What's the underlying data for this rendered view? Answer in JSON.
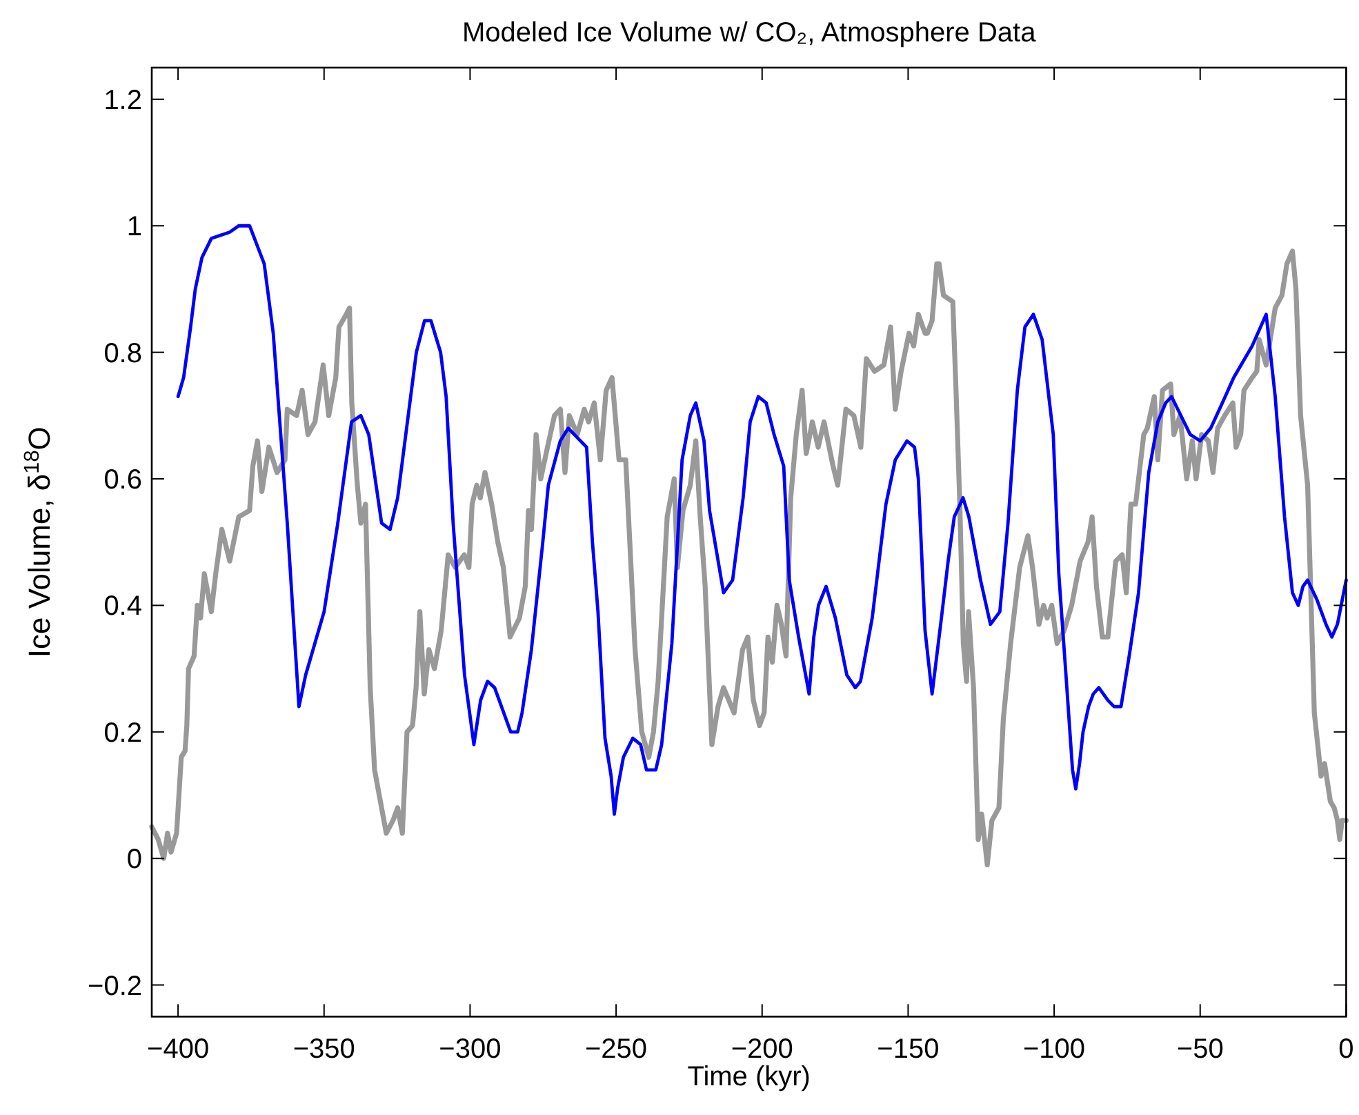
{
  "chart_data": {
    "type": "line",
    "title": "Modeled Ice Volume w/ CO₂, Atmosphere Data",
    "xlabel": "Time (kyr)",
    "ylabel": "Ice Volume, δ$^{18}$O",
    "xlim": [
      -409,
      0
    ],
    "xticks": [
      -400,
      -350,
      -300,
      -250,
      -200,
      -150,
      -100,
      -50,
      0
    ],
    "ylim": [
      -0.25,
      1.25
    ],
    "yticks": [
      -0.2,
      0,
      0.2,
      0.4,
      0.6,
      0.8,
      1,
      1.2
    ],
    "grid": false,
    "marker": "none",
    "line_style": "solid",
    "series": [
      {
        "color": "#999999",
        "x": [
          -409.0,
          -406.8,
          -404.9,
          -403.6,
          -402.4,
          -400.5,
          -398.9,
          -397.6,
          -397.0,
          -396.4,
          -394.5,
          -393.4,
          -392.3,
          -391.0,
          -388.6,
          -387.1,
          -385.0,
          -382.3,
          -379.2,
          -375.5,
          -374.4,
          -372.8,
          -371.3,
          -368.9,
          -366.1,
          -363.4,
          -362.6,
          -359.4,
          -357.5,
          -355.5,
          -353.1,
          -350.3,
          -348.4,
          -346.0,
          -344.9,
          -342.4,
          -341.3,
          -340.5,
          -338.6,
          -337.4,
          -335.8,
          -334.2,
          -332.7,
          -330.3,
          -328.7,
          -326.4,
          -324.8,
          -323.2,
          -321.6,
          -319.7,
          -318.5,
          -317.2,
          -315.7,
          -314.1,
          -312.2,
          -309.9,
          -307.5,
          -305.1,
          -302.0,
          -300.4,
          -299.3,
          -297.7,
          -296.5,
          -294.9,
          -292.6,
          -290.5,
          -288.6,
          -286.3,
          -283.1,
          -281.1,
          -280.0,
          -279.0,
          -277.4,
          -275.8,
          -273.5,
          -271.1,
          -269.1,
          -267.5,
          -266.0,
          -263.3,
          -260.9,
          -259.4,
          -257.5,
          -255.4,
          -253.4,
          -251.4,
          -249.0,
          -246.7,
          -243.5,
          -241.2,
          -238.8,
          -237.2,
          -235.6,
          -232.5,
          -230.1,
          -229.0,
          -227.1,
          -224.6,
          -222.7,
          -221.2,
          -219.5,
          -217.2,
          -215.1,
          -213.2,
          -209.6,
          -206.7,
          -204.9,
          -203.0,
          -200.9,
          -199.3,
          -198.0,
          -196.5,
          -194.9,
          -193.4,
          -191.8,
          -190.2,
          -188.3,
          -186.3,
          -184.9,
          -182.8,
          -180.8,
          -178.8,
          -175.7,
          -174.1,
          -171.3,
          -168.6,
          -166.2,
          -164.3,
          -161.5,
          -158.3,
          -156.0,
          -154.4,
          -152.4,
          -149.7,
          -148.1,
          -146.5,
          -144.2,
          -143.4,
          -141.8,
          -140.2,
          -139.4,
          -137.9,
          -134.7,
          -133.6,
          -132.3,
          -131.1,
          -130.0,
          -129.3,
          -127.6,
          -126.0,
          -124.8,
          -122.9,
          -121.3,
          -118.9,
          -117.4,
          -114.9,
          -111.8,
          -109.0,
          -107.4,
          -105.2,
          -103.6,
          -102.4,
          -100.8,
          -99.0,
          -96.6,
          -94.0,
          -91.1,
          -88.4,
          -87.0,
          -85.5,
          -83.5,
          -81.6,
          -78.9,
          -76.7,
          -75.3,
          -73.7,
          -72.1,
          -69.3,
          -68.1,
          -65.7,
          -64.5,
          -62.9,
          -60.1,
          -59.0,
          -56.9,
          -54.6,
          -52.7,
          -51.4,
          -49.5,
          -47.2,
          -45.6,
          -44.0,
          -41.6,
          -38.8,
          -37.7,
          -36.1,
          -35.0,
          -32.2,
          -30.6,
          -29.8,
          -27.4,
          -24.3,
          -22.0,
          -20.3,
          -18.4,
          -17.2,
          -15.6,
          -13.2,
          -10.9,
          -8.6,
          -7.4,
          -5.4,
          -4.1,
          -3.0,
          -2.2,
          -1.4,
          0.0
        ],
        "values": [
          0.05,
          0.03,
          0.0,
          0.04,
          0.01,
          0.04,
          0.16,
          0.17,
          0.21,
          0.3,
          0.32,
          0.4,
          0.38,
          0.45,
          0.39,
          0.45,
          0.52,
          0.47,
          0.54,
          0.55,
          0.62,
          0.66,
          0.58,
          0.65,
          0.61,
          0.63,
          0.71,
          0.7,
          0.74,
          0.67,
          0.69,
          0.78,
          0.7,
          0.76,
          0.84,
          0.86,
          0.87,
          0.72,
          0.59,
          0.53,
          0.56,
          0.27,
          0.14,
          0.08,
          0.04,
          0.06,
          0.08,
          0.04,
          0.2,
          0.21,
          0.27,
          0.39,
          0.26,
          0.33,
          0.3,
          0.36,
          0.48,
          0.46,
          0.48,
          0.46,
          0.56,
          0.59,
          0.57,
          0.61,
          0.56,
          0.5,
          0.46,
          0.35,
          0.38,
          0.43,
          0.55,
          0.52,
          0.67,
          0.6,
          0.65,
          0.7,
          0.71,
          0.61,
          0.7,
          0.67,
          0.71,
          0.69,
          0.72,
          0.63,
          0.74,
          0.76,
          0.63,
          0.63,
          0.33,
          0.2,
          0.16,
          0.2,
          0.28,
          0.54,
          0.6,
          0.46,
          0.55,
          0.59,
          0.66,
          0.54,
          0.43,
          0.18,
          0.24,
          0.27,
          0.23,
          0.33,
          0.35,
          0.25,
          0.21,
          0.23,
          0.35,
          0.31,
          0.4,
          0.37,
          0.32,
          0.57,
          0.67,
          0.74,
          0.64,
          0.69,
          0.65,
          0.69,
          0.62,
          0.59,
          0.71,
          0.7,
          0.65,
          0.79,
          0.77,
          0.78,
          0.84,
          0.71,
          0.77,
          0.83,
          0.81,
          0.86,
          0.83,
          0.83,
          0.85,
          0.94,
          0.94,
          0.89,
          0.88,
          0.74,
          0.56,
          0.34,
          0.28,
          0.39,
          0.27,
          0.03,
          0.07,
          -0.01,
          0.06,
          0.08,
          0.22,
          0.34,
          0.46,
          0.51,
          0.46,
          0.37,
          0.4,
          0.38,
          0.4,
          0.34,
          0.36,
          0.4,
          0.47,
          0.5,
          0.54,
          0.43,
          0.35,
          0.35,
          0.47,
          0.48,
          0.42,
          0.56,
          0.56,
          0.67,
          0.68,
          0.73,
          0.63,
          0.74,
          0.75,
          0.67,
          0.7,
          0.6,
          0.66,
          0.6,
          0.67,
          0.66,
          0.61,
          0.68,
          0.7,
          0.72,
          0.65,
          0.67,
          0.74,
          0.76,
          0.77,
          0.82,
          0.78,
          0.87,
          0.89,
          0.94,
          0.96,
          0.9,
          0.7,
          0.59,
          0.23,
          0.13,
          0.15,
          0.09,
          0.08,
          0.06,
          0.03,
          0.06,
          0.06
        ]
      },
      {
        "color": "#0000ff",
        "x": [
          -400.0,
          -398.1,
          -395.7,
          -394.1,
          -391.8,
          -388.6,
          -382.3,
          -379.2,
          -375.5,
          -370.5,
          -367.4,
          -362.6,
          -358.6,
          -356.3,
          -350.0,
          -345.3,
          -340.6,
          -337.4,
          -334.7,
          -330.3,
          -327.4,
          -324.8,
          -318.4,
          -315.6,
          -313.4,
          -310.1,
          -308.2,
          -305.8,
          -301.9,
          -298.7,
          -296.4,
          -294.0,
          -291.6,
          -286.1,
          -283.7,
          -282.2,
          -279.0,
          -275.1,
          -273.2,
          -269.1,
          -266.4,
          -260.1,
          -258.1,
          -256.2,
          -253.8,
          -251.7,
          -250.6,
          -249.5,
          -247.5,
          -244.3,
          -241.6,
          -239.6,
          -236.4,
          -234.4,
          -230.9,
          -227.4,
          -224.6,
          -222.7,
          -219.9,
          -218.0,
          -213.2,
          -210.1,
          -206.5,
          -204.1,
          -201.3,
          -198.6,
          -195.9,
          -192.6,
          -190.7,
          -187.5,
          -183.9,
          -182.3,
          -180.7,
          -178.1,
          -174.9,
          -171.0,
          -168.1,
          -166.3,
          -162.3,
          -157.6,
          -154.4,
          -150.4,
          -147.8,
          -146.5,
          -144.2,
          -141.8,
          -138.6,
          -136.3,
          -134.2,
          -131.2,
          -129.2,
          -125.2,
          -121.8,
          -118.6,
          -115.8,
          -112.6,
          -110.0,
          -107.1,
          -104.1,
          -100.3,
          -98.4,
          -95.8,
          -93.7,
          -92.6,
          -91.3,
          -90.1,
          -88.2,
          -86.6,
          -84.7,
          -81.6,
          -79.5,
          -77.1,
          -74.3,
          -71.1,
          -67.6,
          -64.5,
          -61.8,
          -59.8,
          -56.6,
          -53.4,
          -50.0,
          -46.4,
          -42.4,
          -38.5,
          -32.2,
          -27.4,
          -24.3,
          -21.1,
          -18.4,
          -16.4,
          -14.8,
          -13.2,
          -10.1,
          -6.9,
          -4.9,
          -3.0,
          0.0
        ],
        "values": [
          0.73,
          0.76,
          0.84,
          0.9,
          0.95,
          0.98,
          0.99,
          1.0,
          1.0,
          0.94,
          0.83,
          0.53,
          0.24,
          0.29,
          0.39,
          0.53,
          0.69,
          0.7,
          0.67,
          0.53,
          0.52,
          0.57,
          0.8,
          0.85,
          0.85,
          0.8,
          0.73,
          0.53,
          0.29,
          0.18,
          0.25,
          0.28,
          0.27,
          0.2,
          0.2,
          0.23,
          0.33,
          0.5,
          0.59,
          0.66,
          0.68,
          0.65,
          0.5,
          0.39,
          0.19,
          0.13,
          0.07,
          0.11,
          0.16,
          0.19,
          0.18,
          0.14,
          0.14,
          0.18,
          0.34,
          0.63,
          0.7,
          0.72,
          0.66,
          0.55,
          0.42,
          0.44,
          0.57,
          0.69,
          0.73,
          0.72,
          0.67,
          0.62,
          0.44,
          0.35,
          0.26,
          0.35,
          0.4,
          0.43,
          0.38,
          0.29,
          0.27,
          0.28,
          0.38,
          0.56,
          0.63,
          0.66,
          0.65,
          0.6,
          0.36,
          0.26,
          0.38,
          0.47,
          0.54,
          0.57,
          0.54,
          0.44,
          0.37,
          0.39,
          0.53,
          0.74,
          0.84,
          0.86,
          0.82,
          0.67,
          0.45,
          0.28,
          0.14,
          0.11,
          0.15,
          0.2,
          0.24,
          0.26,
          0.27,
          0.25,
          0.24,
          0.24,
          0.32,
          0.42,
          0.61,
          0.69,
          0.72,
          0.73,
          0.7,
          0.67,
          0.66,
          0.68,
          0.72,
          0.76,
          0.81,
          0.86,
          0.73,
          0.54,
          0.42,
          0.4,
          0.43,
          0.44,
          0.41,
          0.37,
          0.35,
          0.37,
          0.44
        ]
      }
    ]
  }
}
